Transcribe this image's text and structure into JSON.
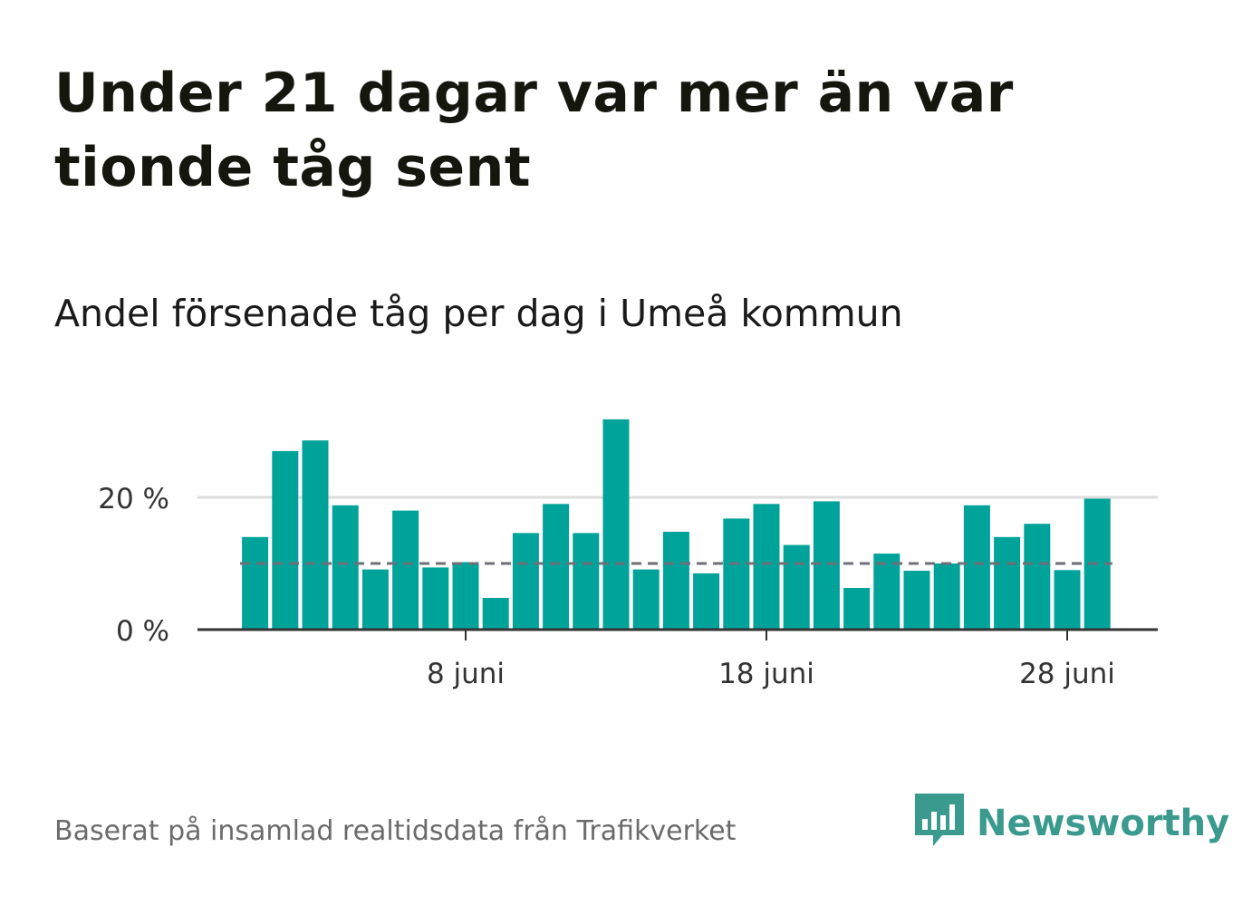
{
  "title": "Under 21 dagar var mer än var tionde tåg sent",
  "subtitle": "Andel försenade tåg per dag i Umeå kommun",
  "footer": "Baserat på insamlad realtidsdata från Trafikverket",
  "brand": {
    "name": "Newsworthy",
    "icon": "newsworthy-logo-icon",
    "color": "#3a9a8e"
  },
  "colors": {
    "bar": "#00a39a",
    "reference_line": "#6f6f78",
    "grid": "#dddddd",
    "axis": "#333333"
  },
  "chart_data": {
    "type": "bar",
    "x_start_day": 1,
    "x_month_label": "juni",
    "values": [
      14.0,
      27.0,
      28.6,
      18.8,
      9.1,
      18.0,
      9.4,
      10.2,
      4.8,
      14.6,
      19.0,
      14.6,
      31.8,
      9.1,
      14.8,
      8.5,
      16.8,
      19.0,
      12.8,
      19.4,
      6.3,
      11.5,
      8.9,
      10.0,
      18.8,
      14.0,
      16.0,
      9.0,
      19.8
    ],
    "reference_line": 10,
    "reference_style": "dashed",
    "ylim": [
      0,
      33
    ],
    "yticks": [
      0,
      20
    ],
    "ytick_labels": [
      "0 %",
      "20 %"
    ],
    "xticks": [
      {
        "day": 8,
        "label": "8 juni"
      },
      {
        "day": 18,
        "label": "18 juni"
      },
      {
        "day": 28,
        "label": "28 juni"
      }
    ],
    "grid": true,
    "xlabel": "",
    "ylabel": ""
  }
}
